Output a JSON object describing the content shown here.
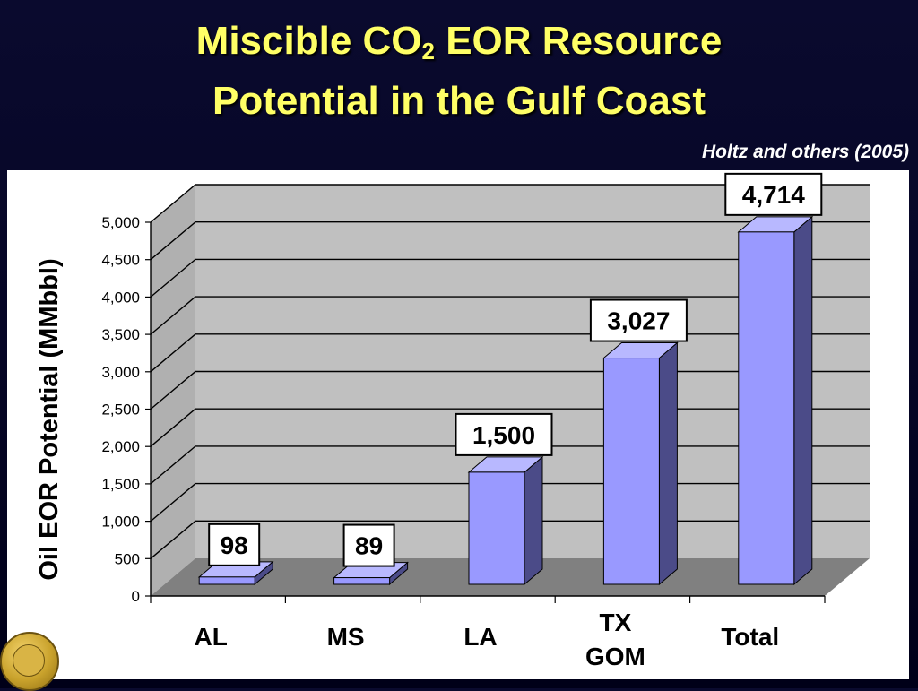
{
  "slide": {
    "title_line1_prefix": "Miscible CO",
    "title_line1_sub": "2",
    "title_line1_suffix": " EOR Resource",
    "title_line2": "Potential in the Gulf Coast",
    "citation": "Holtz and others (2005)"
  },
  "colors": {
    "title": "#ffff66",
    "bar_front": "#9999ff",
    "bar_side": "#4b4b88",
    "wall": "#c0c0c0",
    "floor": "#808080"
  },
  "chart_data": {
    "type": "bar",
    "ylabel": "Oil EOR Potential (MMbbl)",
    "ylim": [
      0,
      5000
    ],
    "yticks": [
      "0",
      "500",
      "1,000",
      "1,500",
      "2,000",
      "2,500",
      "3,000",
      "3,500",
      "4,000",
      "4,500",
      "5,000"
    ],
    "categories": [
      {
        "lines": [
          "AL"
        ]
      },
      {
        "lines": [
          "MS"
        ]
      },
      {
        "lines": [
          "LA"
        ]
      },
      {
        "lines": [
          "TX",
          "GOM"
        ]
      },
      {
        "lines": [
          "Total"
        ]
      }
    ],
    "values": [
      98,
      89,
      1500,
      3027,
      4714
    ],
    "data_labels": [
      "98",
      "89",
      "1,500",
      "3,027",
      "4,714"
    ],
    "grid": true,
    "style": "3d-column"
  }
}
